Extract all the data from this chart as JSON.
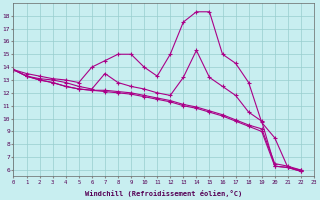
{
  "xlabel": "Windchill (Refroidissement éolien,°C)",
  "background_color": "#c8eef0",
  "grid_color": "#98cece",
  "line_color": "#aa0088",
  "xlim": [
    0,
    23
  ],
  "ylim": [
    5.5,
    19.0
  ],
  "xticks": [
    0,
    1,
    2,
    3,
    4,
    5,
    6,
    7,
    8,
    9,
    10,
    11,
    12,
    13,
    14,
    15,
    16,
    17,
    18,
    19,
    20,
    21,
    22,
    23
  ],
  "yticks": [
    6,
    7,
    8,
    9,
    10,
    11,
    12,
    13,
    14,
    15,
    16,
    17,
    18
  ],
  "series": [
    {
      "x": [
        0,
        1,
        2,
        3,
        4,
        5,
        6,
        7,
        8,
        9,
        10,
        11,
        12,
        13,
        14,
        15,
        16,
        17,
        18,
        19,
        20,
        21,
        22
      ],
      "y": [
        13.8,
        13.3,
        13.0,
        12.8,
        12.5,
        12.3,
        12.2,
        12.1,
        12.0,
        11.9,
        11.7,
        11.5,
        11.3,
        11.0,
        10.8,
        10.5,
        10.2,
        9.8,
        9.4,
        9.0,
        6.3,
        6.2,
        5.9
      ]
    },
    {
      "x": [
        0,
        1,
        2,
        3,
        4,
        5,
        6,
        7,
        8,
        9,
        10,
        11,
        12,
        13,
        14,
        15,
        16,
        17,
        18,
        19,
        20,
        21,
        22
      ],
      "y": [
        13.8,
        13.3,
        13.0,
        12.8,
        12.5,
        12.3,
        12.2,
        12.2,
        12.1,
        12.0,
        11.8,
        11.6,
        11.4,
        11.1,
        10.9,
        10.6,
        10.3,
        9.9,
        9.5,
        9.2,
        6.5,
        6.3,
        6.0
      ]
    },
    {
      "x": [
        0,
        1,
        2,
        3,
        4,
        5,
        6,
        7,
        8,
        9,
        10,
        11,
        12,
        13,
        14,
        15,
        16,
        17,
        18,
        19,
        20,
        21,
        22
      ],
      "y": [
        13.8,
        13.3,
        13.1,
        13.0,
        12.8,
        12.5,
        12.3,
        13.5,
        12.8,
        12.5,
        12.3,
        12.0,
        11.8,
        13.2,
        15.3,
        13.2,
        12.5,
        11.8,
        10.5,
        9.8,
        6.3,
        6.2,
        5.9
      ]
    },
    {
      "x": [
        0,
        1,
        2,
        3,
        4,
        5,
        6,
        7,
        8,
        9,
        10,
        11,
        12,
        13,
        14,
        15,
        16,
        17,
        18,
        19,
        20,
        21,
        22
      ],
      "y": [
        13.8,
        13.5,
        13.3,
        13.1,
        13.0,
        12.8,
        14.0,
        14.5,
        15.0,
        15.0,
        14.0,
        13.3,
        15.0,
        17.5,
        18.3,
        18.3,
        15.0,
        14.3,
        12.8,
        9.7,
        8.5,
        6.2,
        6.0
      ]
    }
  ]
}
